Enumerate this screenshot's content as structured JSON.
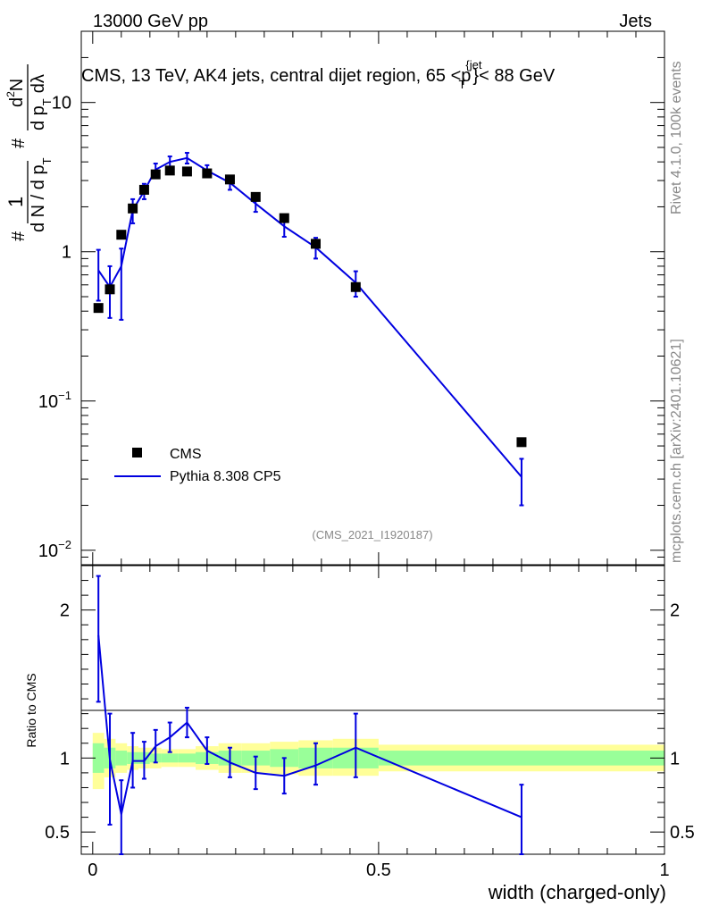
{
  "header": {
    "left": "13000 GeV pp",
    "right": "Jets"
  },
  "side_labels": {
    "rivet": "Rivet 4.1.0,  100k events",
    "mcplots": "mcplots.cern.ch [arXiv:2401.10621]"
  },
  "chart_data": [
    {
      "type": "scatter",
      "title": "CMS, 13 TeV, AK4 jets, central dijet region, 65 <p",
      "title_sup": "{jet",
      "title_sub": "T",
      "title_end": "}< 88 GeV",
      "analysis_id": "(CMS_2021_I1920187)",
      "ylabel": {
        "prefix": "#",
        "one": "1",
        "den": "d N / d p",
        "den_sub": "T",
        "hash2": "#",
        "num_d2": "d",
        "num_sup2": "2",
        "num_N": "N",
        "den2": "d p",
        "den2_sub": "T",
        "den2_end": "dλ"
      },
      "yscale": "log",
      "ylim": [
        0.008,
        30
      ],
      "xlim": [
        -0.02,
        1.0
      ],
      "y_ticks": [
        {
          "value": 0.01,
          "base": "10",
          "exp": "−2"
        },
        {
          "value": 0.1,
          "base": "10",
          "exp": "−1"
        },
        {
          "value": 1,
          "base": "1",
          "exp": ""
        },
        {
          "value": 10,
          "base": "10",
          "exp": ""
        }
      ],
      "legend": {
        "position": "bottom-left",
        "entries": [
          "CMS",
          "Pythia 8.308 CP5"
        ]
      },
      "series": [
        {
          "name": "CMS",
          "marker": "square",
          "color": "#000000",
          "x": [
            0.01,
            0.03,
            0.05,
            0.07,
            0.09,
            0.11,
            0.135,
            0.165,
            0.2,
            0.24,
            0.285,
            0.335,
            0.39,
            0.46,
            0.75
          ],
          "y": [
            0.42,
            0.56,
            1.3,
            1.95,
            2.6,
            3.3,
            3.5,
            3.45,
            3.35,
            3.05,
            2.33,
            1.68,
            1.13,
            0.58,
            0.053
          ]
        },
        {
          "name": "Pythia 8.308 CP5",
          "color": "#0000e0",
          "x": [
            0.01,
            0.03,
            0.05,
            0.07,
            0.09,
            0.11,
            0.135,
            0.165,
            0.2,
            0.24,
            0.285,
            0.335,
            0.39,
            0.46,
            0.75
          ],
          "y": [
            0.75,
            0.58,
            0.8,
            1.9,
            2.55,
            3.55,
            4.0,
            4.25,
            3.5,
            2.9,
            2.1,
            1.48,
            1.07,
            0.62,
            0.031
          ],
          "err_lo": [
            0.28,
            0.22,
            0.45,
            0.35,
            0.3,
            0.35,
            0.35,
            0.35,
            0.3,
            0.3,
            0.25,
            0.22,
            0.17,
            0.12,
            0.011
          ],
          "err_hi": [
            0.28,
            0.22,
            0.25,
            0.35,
            0.3,
            0.35,
            0.35,
            0.35,
            0.3,
            0.3,
            0.25,
            0.22,
            0.17,
            0.12,
            0.01
          ]
        }
      ]
    },
    {
      "type": "line",
      "ylabel": "Ratio to CMS",
      "xlabel": "width (charged-only)",
      "ylim": [
        0.35,
        2.3
      ],
      "xlim": [
        -0.02,
        1.0
      ],
      "x_ticks": [
        {
          "value": 0,
          "label": "0"
        },
        {
          "value": 0.5,
          "label": "0.5"
        },
        {
          "value": 1,
          "label": "1"
        }
      ],
      "y_ticks": [
        {
          "value": 0.5,
          "label": "0.5"
        },
        {
          "value": 1,
          "label": "1"
        },
        {
          "value": 2,
          "label": "2"
        }
      ],
      "bands": [
        {
          "x0": 0.0,
          "x1": 0.02,
          "green": [
            0.9,
            1.1
          ],
          "yellow": [
            0.79,
            1.17
          ]
        },
        {
          "x0": 0.02,
          "x1": 0.04,
          "green": [
            0.93,
            1.07
          ],
          "yellow": [
            0.87,
            1.13
          ]
        },
        {
          "x0": 0.04,
          "x1": 0.06,
          "green": [
            0.95,
            1.05
          ],
          "yellow": [
            0.9,
            1.1
          ]
        },
        {
          "x0": 0.06,
          "x1": 0.08,
          "green": [
            0.96,
            1.04
          ],
          "yellow": [
            0.92,
            1.08
          ]
        },
        {
          "x0": 0.08,
          "x1": 0.1,
          "green": [
            0.96,
            1.04
          ],
          "yellow": [
            0.93,
            1.07
          ]
        },
        {
          "x0": 0.1,
          "x1": 0.12,
          "green": [
            0.97,
            1.03
          ],
          "yellow": [
            0.93,
            1.07
          ]
        },
        {
          "x0": 0.12,
          "x1": 0.15,
          "green": [
            0.97,
            1.03
          ],
          "yellow": [
            0.94,
            1.06
          ]
        },
        {
          "x0": 0.15,
          "x1": 0.18,
          "green": [
            0.97,
            1.03
          ],
          "yellow": [
            0.94,
            1.06
          ]
        },
        {
          "x0": 0.18,
          "x1": 0.22,
          "green": [
            0.96,
            1.04
          ],
          "yellow": [
            0.92,
            1.08
          ]
        },
        {
          "x0": 0.22,
          "x1": 0.26,
          "green": [
            0.95,
            1.05
          ],
          "yellow": [
            0.9,
            1.1
          ]
        },
        {
          "x0": 0.26,
          "x1": 0.31,
          "green": [
            0.95,
            1.05
          ],
          "yellow": [
            0.9,
            1.1
          ]
        },
        {
          "x0": 0.31,
          "x1": 0.36,
          "green": [
            0.94,
            1.06
          ],
          "yellow": [
            0.89,
            1.11
          ]
        },
        {
          "x0": 0.36,
          "x1": 0.42,
          "green": [
            0.93,
            1.07
          ],
          "yellow": [
            0.88,
            1.12
          ]
        },
        {
          "x0": 0.42,
          "x1": 0.5,
          "green": [
            0.93,
            1.07
          ],
          "yellow": [
            0.88,
            1.13
          ]
        },
        {
          "x0": 0.5,
          "x1": 1.0,
          "green": [
            0.95,
            1.05
          ],
          "yellow": [
            0.91,
            1.09
          ]
        }
      ],
      "series": [
        {
          "name": "Pythia 8.308 CP5 / CMS",
          "color": "#0000e0",
          "x": [
            0.01,
            0.03,
            0.05,
            0.07,
            0.09,
            0.11,
            0.135,
            0.165,
            0.2,
            0.24,
            0.285,
            0.335,
            0.39,
            0.46,
            0.75
          ],
          "y": [
            1.83,
            0.99,
            0.62,
            0.98,
            0.98,
            1.08,
            1.14,
            1.24,
            1.05,
            0.97,
            0.9,
            0.88,
            0.95,
            1.07,
            0.6
          ],
          "err_lo": [
            0.45,
            0.44,
            0.3,
            0.18,
            0.12,
            0.11,
            0.1,
            0.1,
            0.09,
            0.1,
            0.11,
            0.12,
            0.13,
            0.2,
            0.25
          ],
          "err_hi": [
            0.4,
            0.31,
            0.23,
            0.19,
            0.13,
            0.11,
            0.1,
            0.1,
            0.09,
            0.1,
            0.11,
            0.12,
            0.15,
            0.23,
            0.22
          ]
        }
      ]
    }
  ]
}
